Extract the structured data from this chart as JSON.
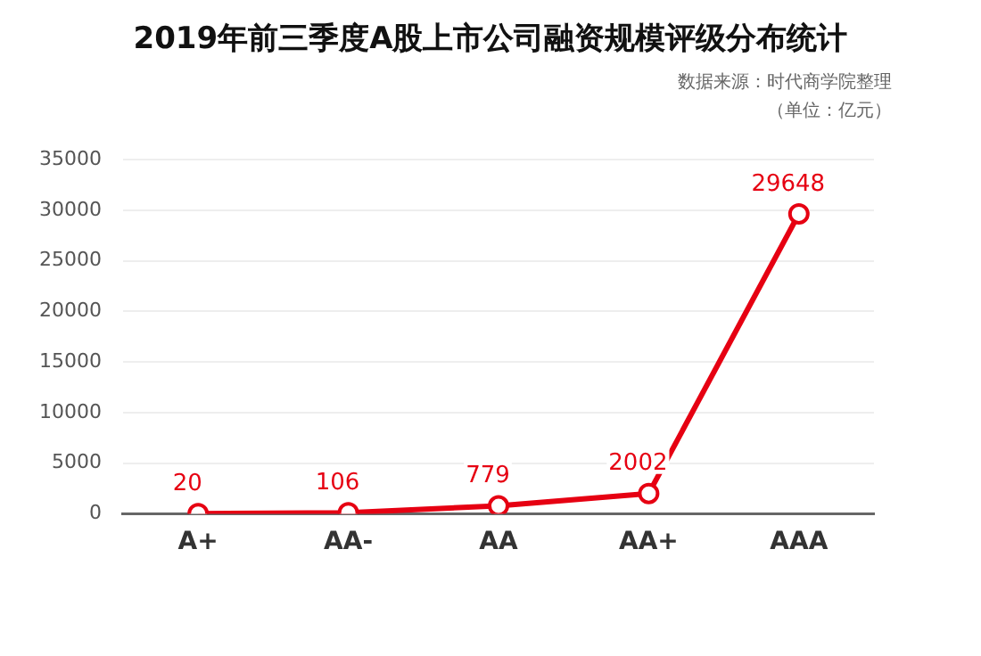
{
  "chart_data": {
    "type": "line",
    "title": "2019年前三季度A股上市公司融资规模评级分布统计",
    "annotations": [
      "数据来源：时代商学院整理",
      "（单位：亿元）"
    ],
    "categories": [
      "A+",
      "AA-",
      "AA",
      "AA+",
      "AAA"
    ],
    "series": [
      {
        "color": "#e60012",
        "values": [
          20,
          106,
          779,
          2002,
          29648
        ]
      }
    ],
    "ylim": [
      0,
      35000
    ],
    "yticks": [
      0,
      5000,
      10000,
      15000,
      20000,
      25000,
      30000,
      35000
    ],
    "grid": "y",
    "legend": false,
    "marker": "circle",
    "line_style": "solid",
    "data_labels": true
  }
}
